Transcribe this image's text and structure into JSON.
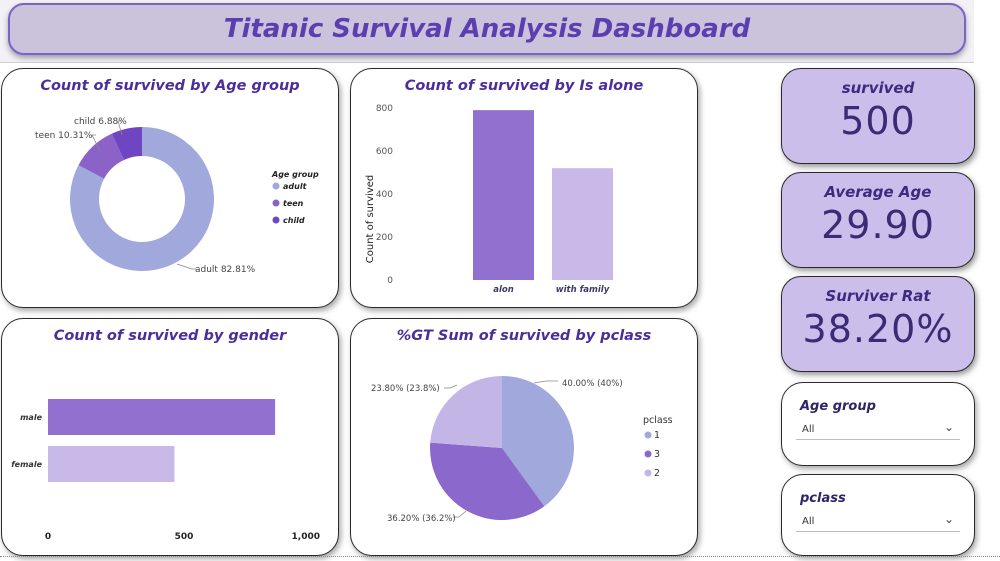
{
  "dashboard": {
    "title": "Titanic Survival Analysis Dashboard"
  },
  "kpis": [
    {
      "label": "survived",
      "value": "500"
    },
    {
      "label": "Average Age",
      "value": "29.90"
    },
    {
      "label": "Surviver Rat",
      "value": "38.20%"
    }
  ],
  "slicers": [
    {
      "label": "Age group",
      "value": "All",
      "chevron": "chevron-down-icon"
    },
    {
      "label": "pclass",
      "value": "All",
      "chevron": "chevron-down-icon"
    }
  ],
  "colors": {
    "adult": "#a0a8dc",
    "teen": "#8b63c8",
    "child": "#6f45c2",
    "bar_dark": "#9170cf",
    "bar_light": "#c8b9e8",
    "pclass1": "#a0a8dc",
    "pclass3": "#8a68cc",
    "pclass2": "#c3b5e6"
  },
  "chart_data": [
    {
      "type": "pie",
      "title": "Count of survived by Age group",
      "legend_title": "Age group",
      "legend_position": "right",
      "donut": true,
      "slices": [
        {
          "name": "adult",
          "percent": 82.81,
          "label": "adult 82.81%"
        },
        {
          "name": "teen",
          "percent": 10.31,
          "label": "teen 10.31%"
        },
        {
          "name": "child",
          "percent": 6.88,
          "label": "child 6.88%"
        }
      ]
    },
    {
      "type": "bar",
      "title": "Count of survived by Is alone",
      "categories": [
        "alon",
        "with family"
      ],
      "values": [
        790,
        520
      ],
      "ylabel": "Count of survived",
      "ylim": [
        0,
        800
      ],
      "yticks": [
        "0",
        "200",
        "400",
        "600",
        "800"
      ]
    },
    {
      "type": "bar",
      "orientation": "horizontal",
      "title": "Count of survived by gender",
      "categories": [
        "male",
        "female"
      ],
      "values": [
        835,
        465
      ],
      "xlim": [
        0,
        1000
      ],
      "xticks": [
        "0",
        "500",
        "1,000"
      ]
    },
    {
      "type": "pie",
      "title": "%GT Sum of survived by pclass",
      "legend_title": "pclass",
      "legend_position": "right",
      "legend": [
        "1",
        "3",
        "2"
      ],
      "slices": [
        {
          "name": "1",
          "percent": 40.0,
          "label": "40.00% (40%)"
        },
        {
          "name": "3",
          "percent": 36.2,
          "label": "36.20% (36.2%)"
        },
        {
          "name": "2",
          "percent": 23.8,
          "label": "23.80% (23.8%)"
        }
      ]
    }
  ]
}
